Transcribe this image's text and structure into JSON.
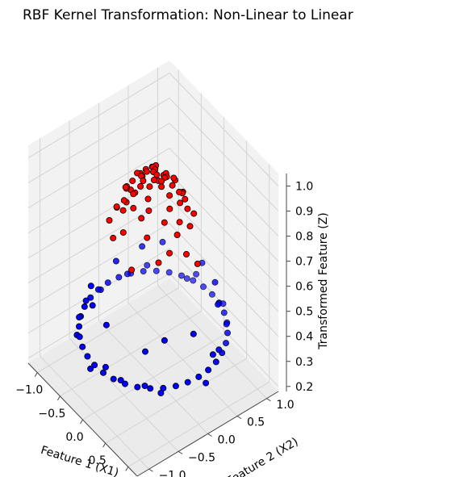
{
  "chart_data": {
    "type": "scatter",
    "title": "RBF Kernel Transformation: Non-Linear to Linear",
    "projection": "3d",
    "xlabel": "Feature 1 (X1)",
    "ylabel": "Feature 2 (X2)",
    "zlabel": "Transformed Feature (Z)",
    "x_ticks": [
      "−1.0",
      "−0.5",
      "0.0",
      "0.5",
      "1.0"
    ],
    "y_ticks": [
      "−1.0",
      "−0.5",
      "0.0",
      "0.5",
      "1.0"
    ],
    "z_ticks": [
      "0.2",
      "0.3",
      "0.4",
      "0.5",
      "0.6",
      "0.7",
      "0.8",
      "0.9",
      "1.0"
    ],
    "xlim": [
      -1.2,
      1.2
    ],
    "ylim": [
      -1.2,
      1.2
    ],
    "zlim": [
      0.18,
      1.05
    ],
    "grid": true,
    "series": [
      {
        "color": "#0000ff",
        "points": [
          [
            1.0,
            0.0,
            0.37
          ],
          [
            0.985,
            0.174,
            0.37
          ],
          [
            0.94,
            0.342,
            0.37
          ],
          [
            0.866,
            0.5,
            0.37
          ],
          [
            0.766,
            0.643,
            0.37
          ],
          [
            0.643,
            0.766,
            0.37
          ],
          [
            0.5,
            0.866,
            0.37
          ],
          [
            0.342,
            0.94,
            0.37
          ],
          [
            0.174,
            0.985,
            0.37
          ],
          [
            0.0,
            1.0,
            0.37
          ],
          [
            -0.174,
            0.985,
            0.37
          ],
          [
            -0.342,
            0.94,
            0.37
          ],
          [
            -0.5,
            0.866,
            0.37
          ],
          [
            -0.643,
            0.766,
            0.37
          ],
          [
            -0.766,
            0.643,
            0.37
          ],
          [
            -0.866,
            0.5,
            0.37
          ],
          [
            -0.94,
            0.342,
            0.37
          ],
          [
            -0.985,
            0.174,
            0.37
          ],
          [
            -1.0,
            0.0,
            0.37
          ],
          [
            -0.985,
            -0.174,
            0.37
          ],
          [
            -0.94,
            -0.342,
            0.37
          ],
          [
            -0.866,
            -0.5,
            0.37
          ],
          [
            -0.766,
            -0.643,
            0.37
          ],
          [
            -0.643,
            -0.766,
            0.37
          ],
          [
            -0.5,
            -0.866,
            0.37
          ],
          [
            -0.342,
            -0.94,
            0.37
          ],
          [
            -0.174,
            -0.985,
            0.37
          ],
          [
            0.0,
            -1.0,
            0.37
          ],
          [
            0.174,
            -0.985,
            0.37
          ],
          [
            0.342,
            -0.94,
            0.37
          ],
          [
            0.5,
            -0.866,
            0.37
          ],
          [
            0.643,
            -0.766,
            0.37
          ],
          [
            0.766,
            -0.643,
            0.37
          ],
          [
            0.866,
            -0.5,
            0.37
          ],
          [
            0.94,
            -0.342,
            0.37
          ],
          [
            0.985,
            -0.174,
            0.37
          ],
          [
            1.04,
            0.09,
            0.34
          ],
          [
            0.9,
            0.42,
            0.4
          ],
          [
            0.55,
            0.82,
            0.38
          ],
          [
            0.1,
            1.04,
            0.35
          ],
          [
            -0.45,
            0.92,
            0.36
          ],
          [
            -0.85,
            0.55,
            0.39
          ],
          [
            -1.03,
            -0.1,
            0.35
          ],
          [
            -0.9,
            -0.45,
            0.38
          ],
          [
            -0.58,
            -0.85,
            0.36
          ],
          [
            -0.05,
            -1.03,
            0.35
          ],
          [
            0.45,
            -0.9,
            0.38
          ],
          [
            0.88,
            -0.55,
            0.36
          ],
          [
            0.95,
            0.28,
            0.41
          ],
          [
            0.28,
            0.97,
            0.39
          ],
          [
            -0.3,
            0.96,
            0.4
          ],
          [
            -0.96,
            0.3,
            0.37
          ],
          [
            -0.7,
            -0.72,
            0.39
          ],
          [
            0.22,
            -0.98,
            0.4
          ],
          [
            0.72,
            -0.7,
            0.38
          ],
          [
            0.62,
            0.62,
            0.5
          ],
          [
            -0.6,
            0.62,
            0.52
          ],
          [
            0.6,
            -0.6,
            0.48
          ],
          [
            -0.62,
            -0.58,
            0.51
          ],
          [
            0.0,
            0.83,
            0.52
          ],
          [
            0.82,
            0.05,
            0.5
          ],
          [
            -0.82,
            0.0,
            0.49
          ],
          [
            0.03,
            -0.82,
            0.51
          ],
          [
            0.4,
            0.74,
            0.53
          ],
          [
            -0.74,
            0.38,
            0.51
          ],
          [
            0.74,
            -0.38,
            0.52
          ],
          [
            -0.38,
            -0.74,
            0.5
          ]
        ]
      },
      {
        "color": "#ff0000",
        "points": [
          [
            0.0,
            0.0,
            1.0
          ],
          [
            0.05,
            0.02,
            0.995
          ],
          [
            -0.04,
            0.06,
            0.993
          ],
          [
            0.08,
            -0.05,
            0.99
          ],
          [
            -0.09,
            -0.04,
            0.99
          ],
          [
            0.12,
            0.1,
            0.985
          ],
          [
            -0.13,
            0.09,
            0.982
          ],
          [
            0.1,
            -0.14,
            0.98
          ],
          [
            -0.11,
            -0.12,
            0.98
          ],
          [
            0.18,
            0.0,
            0.975
          ],
          [
            -0.19,
            0.02,
            0.972
          ],
          [
            0.02,
            0.2,
            0.97
          ],
          [
            -0.01,
            -0.21,
            0.97
          ],
          [
            0.2,
            0.17,
            0.96
          ],
          [
            -0.22,
            0.15,
            0.958
          ],
          [
            0.17,
            -0.22,
            0.955
          ],
          [
            -0.2,
            -0.2,
            0.955
          ],
          [
            0.28,
            0.06,
            0.95
          ],
          [
            -0.29,
            -0.05,
            0.948
          ],
          [
            0.06,
            0.3,
            0.945
          ],
          [
            -0.05,
            -0.3,
            0.945
          ],
          [
            0.26,
            0.24,
            0.935
          ],
          [
            -0.27,
            0.24,
            0.93
          ],
          [
            0.25,
            -0.27,
            0.93
          ],
          [
            -0.26,
            -0.27,
            0.928
          ],
          [
            0.36,
            0.0,
            0.92
          ],
          [
            -0.36,
            0.06,
            0.918
          ],
          [
            0.0,
            0.37,
            0.915
          ],
          [
            0.04,
            -0.37,
            0.915
          ],
          [
            0.33,
            0.2,
            0.91
          ],
          [
            -0.34,
            -0.19,
            0.905
          ],
          [
            0.2,
            0.34,
            0.905
          ],
          [
            -0.2,
            0.33,
            0.903
          ],
          [
            0.19,
            -0.35,
            0.9
          ],
          [
            -0.19,
            -0.35,
            0.9
          ],
          [
            0.4,
            -0.12,
            0.89
          ],
          [
            -0.41,
            0.13,
            0.888
          ],
          [
            0.12,
            0.41,
            0.885
          ],
          [
            -0.12,
            -0.42,
            0.883
          ],
          [
            0.45,
            0.1,
            0.87
          ],
          [
            -0.45,
            -0.11,
            0.865
          ],
          [
            0.3,
            0.35,
            0.86
          ],
          [
            -0.33,
            0.34,
            0.855
          ],
          [
            0.33,
            -0.36,
            0.85
          ],
          [
            -0.34,
            -0.36,
            0.848
          ],
          [
            0.5,
            0.02,
            0.84
          ],
          [
            -0.5,
            0.0,
            0.835
          ],
          [
            0.05,
            0.5,
            0.83
          ],
          [
            0.0,
            -0.51,
            0.83
          ],
          [
            0.42,
            0.3,
            0.82
          ],
          [
            -0.44,
            -0.28,
            0.815
          ],
          [
            0.55,
            -0.15,
            0.8
          ],
          [
            -0.56,
            0.12,
            0.795
          ],
          [
            0.18,
            0.55,
            0.79
          ],
          [
            -0.16,
            -0.56,
            0.785
          ],
          [
            0.6,
            0.1,
            0.77
          ],
          [
            -0.62,
            0.02,
            0.76
          ],
          [
            0.3,
            -0.6,
            0.75
          ],
          [
            -0.58,
            -0.3,
            0.74
          ],
          [
            0.65,
            0.25,
            0.72
          ],
          [
            0.05,
            0.05,
            0.64
          ],
          [
            -0.1,
            0.12,
            0.99
          ],
          [
            0.14,
            0.03,
            0.985
          ],
          [
            -0.03,
            -0.15,
            0.98
          ],
          [
            0.09,
            0.16,
            0.975
          ]
        ]
      }
    ]
  }
}
